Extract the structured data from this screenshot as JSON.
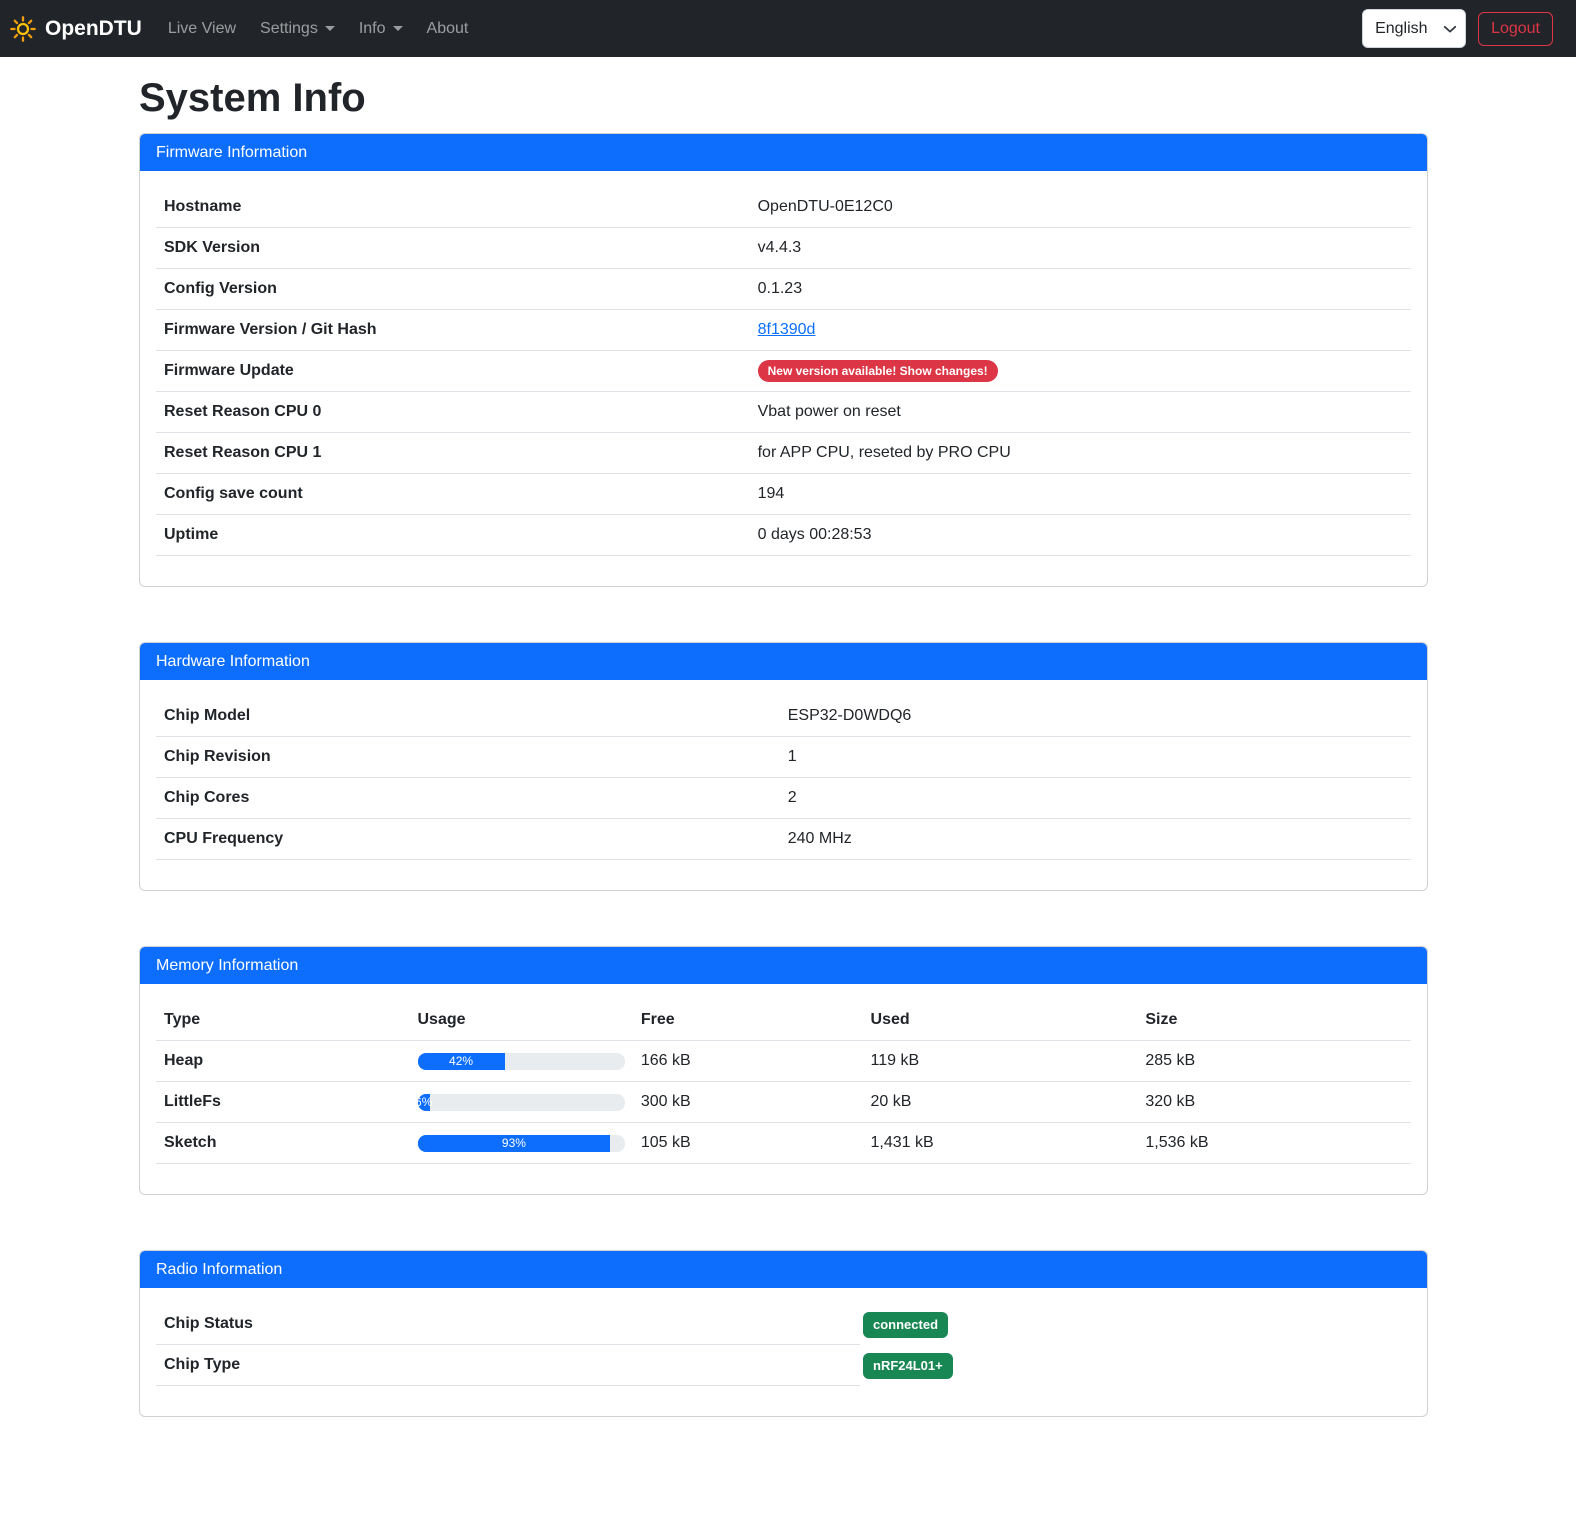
{
  "navbar": {
    "brand": "OpenDTU",
    "items": [
      {
        "label": "Live View",
        "dropdown": false
      },
      {
        "label": "Settings",
        "dropdown": true
      },
      {
        "label": "Info",
        "dropdown": true
      },
      {
        "label": "About",
        "dropdown": false
      }
    ],
    "language_selected": "English",
    "logout_label": "Logout"
  },
  "page": {
    "title": "System Info"
  },
  "firmware_card": {
    "title": "Firmware Information",
    "rows": [
      {
        "label": "Hostname",
        "value": "OpenDTU-0E12C0",
        "type": "text"
      },
      {
        "label": "SDK Version",
        "value": "v4.4.3",
        "type": "text"
      },
      {
        "label": "Config Version",
        "value": "0.1.23",
        "type": "text"
      },
      {
        "label": "Firmware Version / Git Hash",
        "value": "8f1390d",
        "type": "link"
      },
      {
        "label": "Firmware Update",
        "value": "New version available! Show changes!",
        "type": "danger-badge"
      },
      {
        "label": "Reset Reason CPU 0",
        "value": "Vbat power on reset",
        "type": "text"
      },
      {
        "label": "Reset Reason CPU 1",
        "value": "for APP CPU, reseted by PRO CPU",
        "type": "text"
      },
      {
        "label": "Config save count",
        "value": "194",
        "type": "text"
      },
      {
        "label": "Uptime",
        "value": "0 days 00:28:53",
        "type": "text"
      }
    ]
  },
  "hardware_card": {
    "title": "Hardware Information",
    "rows": [
      {
        "label": "Chip Model",
        "value": "ESP32-D0WDQ6",
        "type": "text"
      },
      {
        "label": "Chip Revision",
        "value": "1",
        "type": "text"
      },
      {
        "label": "Chip Cores",
        "value": "2",
        "type": "text"
      },
      {
        "label": "CPU Frequency",
        "value": "240 MHz",
        "type": "text"
      }
    ]
  },
  "memory_card": {
    "title": "Memory Information",
    "columns": [
      "Type",
      "Usage",
      "Free",
      "Used",
      "Size"
    ],
    "rows": [
      {
        "type": "Heap",
        "usage_pct": 42,
        "usage_label": "42%",
        "free": "166 kB",
        "used": "119 kB",
        "size": "285 kB"
      },
      {
        "type": "LittleFs",
        "usage_pct": 6,
        "usage_label": "6%",
        "free": "300 kB",
        "used": "20 kB",
        "size": "320 kB"
      },
      {
        "type": "Sketch",
        "usage_pct": 93,
        "usage_label": "93%",
        "free": "105 kB",
        "used": "1,431 kB",
        "size": "1,536 kB"
      }
    ]
  },
  "radio_card": {
    "title": "Radio Information",
    "rows": [
      {
        "label": "Chip Status",
        "badge": "connected"
      },
      {
        "label": "Chip Type",
        "badge": "nRF24L01+"
      }
    ]
  },
  "colors": {
    "primary": "#0d6efd",
    "danger": "#dc3545",
    "success": "#198754",
    "navbar_bg": "#212529",
    "brand_sun": "#ffc107",
    "divider": "#dee2e6",
    "progress_track": "#e9ecef"
  }
}
